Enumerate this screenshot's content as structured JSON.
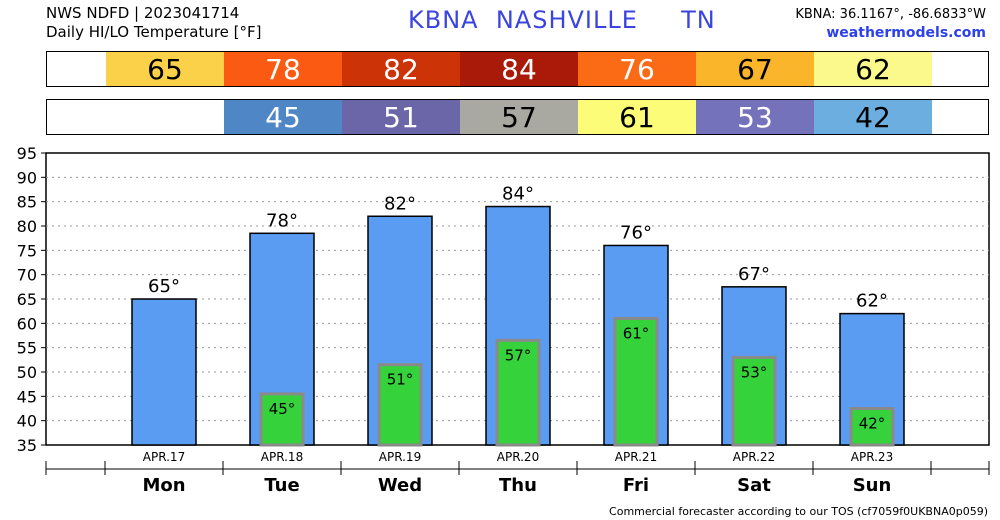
{
  "header": {
    "line1": "NWS NDFD | 2023041714",
    "line2": "Daily HI/LO Temperature [°F]",
    "station_code": "KBNA",
    "city": "NASHVILLE",
    "state": "TN",
    "coords": "KBNA: 36.1167°, -86.6833°W",
    "site": "weathermodels.com"
  },
  "footer": "Commercial forecaster according to our TOS (cf7059f0UKBNA0p059)",
  "colors": {
    "hi_bar": "#5a9cf2",
    "lo_bar": "#36d23c",
    "lo_bar_border": "#8a8a8a",
    "hi_cells": [
      "#fcd14a",
      "#fa5a12",
      "#cc3306",
      "#aa1a08",
      "#fb6a14",
      "#fbb52a",
      "#fbf88c"
    ],
    "lo_cells": [
      "#4f86c6",
      "#6a66a8",
      "#a9a9a1",
      "#fcfc78",
      "#7572bc",
      "#6caee0"
    ]
  },
  "chart_data": {
    "type": "bar",
    "categories": [
      "Mon",
      "Tue",
      "Wed",
      "Thu",
      "Fri",
      "Sat",
      "Sun"
    ],
    "dates": [
      "APR.17",
      "APR.18",
      "APR.19",
      "APR.20",
      "APR.21",
      "APR.22",
      "APR.23"
    ],
    "hi_labels": [
      "65°",
      "78°",
      "82°",
      "84°",
      "76°",
      "67°",
      "62°"
    ],
    "lo_labels": [
      "",
      "45°",
      "51°",
      "57°",
      "61°",
      "53°",
      "42°"
    ],
    "hi_strip": [
      "65",
      "78",
      "82",
      "84",
      "76",
      "67",
      "62"
    ],
    "lo_strip": [
      "45",
      "51",
      "57",
      "61",
      "53",
      "42"
    ],
    "series": [
      {
        "values": [
          65,
          78.5,
          82,
          84,
          76,
          67.5,
          62
        ]
      },
      {
        "values": [
          null,
          45.5,
          51.5,
          56.5,
          61,
          53,
          42.5
        ]
      }
    ],
    "ylim": [
      35,
      95
    ],
    "yticks": [
      "35",
      "40",
      "45",
      "50",
      "55",
      "60",
      "65",
      "70",
      "75",
      "80",
      "85",
      "90",
      "95"
    ],
    "grid": true
  }
}
